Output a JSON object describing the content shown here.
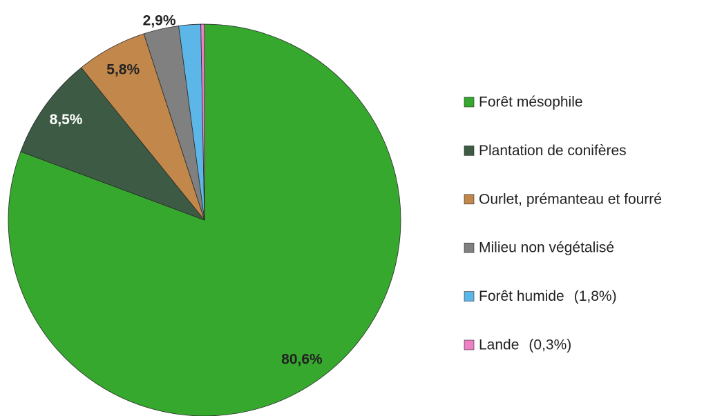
{
  "chart_data": {
    "type": "pie",
    "categories": [
      "Forêt mésophile",
      "Plantation de conifères",
      "Ourlet, prémanteau et fourré",
      "Milieu non végétalisé",
      "Forêt humide",
      "Lande"
    ],
    "values": [
      80.6,
      8.5,
      5.8,
      2.9,
      1.8,
      0.3
    ],
    "value_labels": [
      "80,6%",
      "8,5%",
      "5,8%",
      "2,9%",
      "(1,8%)",
      "(0,3%)"
    ],
    "colors": [
      "#35a82d",
      "#3c5a44",
      "#c2874b",
      "#808080",
      "#5cb6e8",
      "#ee80c6"
    ],
    "legend": "right"
  }
}
